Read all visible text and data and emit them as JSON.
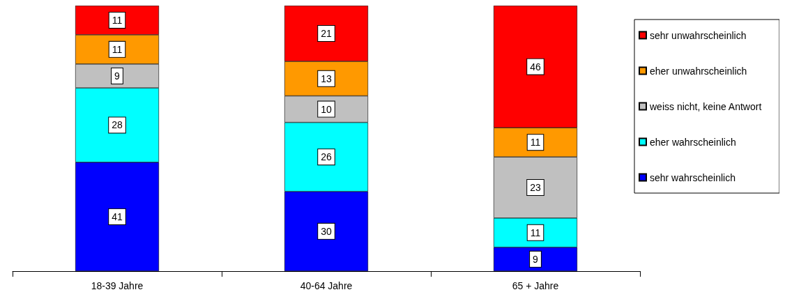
{
  "chart_data": {
    "type": "bar",
    "stacked": true,
    "categories": [
      "18-39 Jahre",
      "40-64 Jahre",
      "65 + Jahre"
    ],
    "series": [
      {
        "name": "sehr wahrscheinlich",
        "color": "#0000ff",
        "values": [
          41,
          30,
          9
        ]
      },
      {
        "name": "eher wahrscheinlich",
        "color": "#00ffff",
        "values": [
          28,
          26,
          11
        ]
      },
      {
        "name": "weiss nicht, keine Antwort",
        "color": "#c0c0c0",
        "values": [
          9,
          10,
          23
        ]
      },
      {
        "name": "eher unwahrscheinlich",
        "color": "#ff9900",
        "values": [
          11,
          13,
          11
        ]
      },
      {
        "name": "sehr unwahrscheinlich",
        "color": "#ff0000",
        "values": [
          11,
          21,
          46
        ]
      }
    ],
    "data_labels": true,
    "legend": "right",
    "grid": false
  }
}
